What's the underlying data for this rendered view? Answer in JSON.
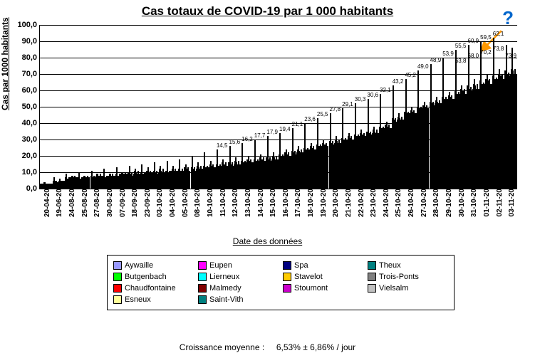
{
  "title": "Cas totaux de COVID-19 par 1 000 habitants",
  "qmark": "?",
  "ylabel": "Cas par 1000 habitants",
  "xlabel": "Date des données",
  "footer_label": "Croissance moyenne :",
  "footer_value": "6,53%  ± 6,86% / jour",
  "chart": {
    "ylim": [
      0,
      100
    ],
    "ytick_step": 10,
    "ytick_labels": [
      "0,0",
      "10,0",
      "20,0",
      "30,0",
      "40,0",
      "50,0",
      "60,0",
      "70,0",
      "80,0",
      "90,0",
      "100,0"
    ],
    "grid_color": "#000000",
    "bg": "#ffffff",
    "arrow_color": "#ff9900",
    "series": [
      {
        "name": "Aywaille",
        "color": "#9999ff"
      },
      {
        "name": "Butgenbach",
        "color": "#00ff00"
      },
      {
        "name": "Chaudfontaine",
        "color": "#ff0000"
      },
      {
        "name": "Esneux",
        "color": "#ffff99"
      },
      {
        "name": "Eupen",
        "color": "#ff00ff"
      },
      {
        "name": "Lierneux",
        "color": "#00ffff"
      },
      {
        "name": "Malmedy",
        "color": "#800000"
      },
      {
        "name": "Saint-Vith",
        "color": "#008080"
      },
      {
        "name": "Spa",
        "color": "#000080"
      },
      {
        "name": "Stavelot",
        "color": "#ffcc00"
      },
      {
        "name": "Stoumont",
        "color": "#cc00cc"
      },
      {
        "name": "Theux",
        "color": "#008080"
      },
      {
        "name": "Trois-Ponts",
        "color": "#808080"
      },
      {
        "name": "Vielsalm",
        "color": "#c0c0c0"
      }
    ],
    "legend_order": [
      0,
      4,
      8,
      11,
      1,
      5,
      9,
      12,
      2,
      6,
      10,
      13,
      3,
      7
    ],
    "dates": [
      "20-04-20",
      "19-06-20",
      "24-08-20",
      "25-08-20",
      "27-08-20",
      "30-08-20",
      "07-09-20",
      "18-09-20",
      "23-09-20",
      "03-10-20",
      "04-10-20",
      "05-10-20",
      "08-10-20",
      "10-10-20",
      "11-10-20",
      "12-10-20",
      "13-10-20",
      "14-10-20",
      "15-10-20",
      "16-10-20",
      "17-10-20",
      "18-10-20",
      "19-10-20",
      "20-10-20",
      "21-10-20",
      "22-10-20",
      "23-10-20",
      "24-10-20",
      "25-10-20",
      "26-10-20",
      "27-10-20",
      "28-10-20",
      "29-10-20",
      "30-10-20",
      "31-10-20",
      "01-11-20",
      "02-11-20",
      "03-11-20"
    ],
    "data_labels": {
      "14": "14,5",
      "15": "15,6",
      "16": "16,2",
      "17": "17,7",
      "18": "17,9",
      "19": "19,4",
      "20": "21,1",
      "21": "23,6",
      "22": "25,5",
      "23": "27,8",
      "24": "29,1",
      "25": "30,3",
      "26": "30,6",
      "27": "32,1",
      "28": "43,2",
      "29": "45,2",
      "30": "49,0",
      "31": "48,9",
      "32": "53,9",
      "33": "55,5",
      "34": "60,9",
      "35": "59,5",
      "36": "62,1",
      "37": null
    },
    "top_labels": {
      "33": "63,8",
      "34": "68,0",
      "35": "70,2",
      "36": "73,8",
      "37": "73,9"
    },
    "values": [
      [
        3,
        3,
        3,
        3,
        4,
        4,
        3,
        3,
        3,
        2,
        3,
        3,
        3,
        3
      ],
      [
        5,
        7,
        5,
        4,
        5,
        4,
        4,
        5,
        6,
        5,
        5,
        5,
        5,
        5
      ],
      [
        7,
        9,
        6,
        6,
        7,
        6,
        7,
        8,
        8,
        7,
        7,
        8,
        7,
        7
      ],
      [
        7,
        10,
        6,
        6,
        7,
        6,
        7,
        8,
        8,
        7,
        7,
        8,
        7,
        7
      ],
      [
        8,
        11,
        7,
        7,
        8,
        7,
        8,
        9,
        9,
        8,
        8,
        9,
        8,
        8
      ],
      [
        8,
        12,
        7,
        7,
        8,
        7,
        8,
        9,
        9,
        8,
        8,
        9,
        8,
        8
      ],
      [
        9,
        13,
        8,
        8,
        9,
        8,
        9,
        10,
        10,
        9,
        9,
        10,
        9,
        9
      ],
      [
        10,
        14,
        9,
        9,
        10,
        8,
        9,
        11,
        12,
        10,
        9,
        11,
        9,
        9
      ],
      [
        10,
        15,
        9,
        9,
        10,
        9,
        10,
        11,
        13,
        10,
        10,
        11,
        10,
        10
      ],
      [
        11,
        16,
        10,
        10,
        11,
        9,
        10,
        12,
        14,
        11,
        10,
        12,
        10,
        10
      ],
      [
        11,
        17,
        10,
        10,
        11,
        10,
        11,
        12,
        14,
        11,
        11,
        12,
        11,
        11
      ],
      [
        12,
        18,
        11,
        11,
        12,
        10,
        11,
        13,
        15,
        12,
        11,
        13,
        11,
        11
      ],
      [
        13,
        20,
        12,
        12,
        13,
        11,
        12,
        14,
        16,
        13,
        12,
        14,
        12,
        12
      ],
      [
        14,
        22,
        13,
        13,
        14,
        12,
        13,
        15,
        17,
        14,
        13,
        15,
        13,
        13
      ],
      [
        15,
        24,
        14,
        14,
        15,
        13,
        14,
        16,
        18,
        15,
        14,
        16,
        14,
        14
      ],
      [
        16,
        26,
        15,
        15,
        16,
        14,
        15,
        17,
        19,
        16,
        15,
        17,
        15,
        15
      ],
      [
        17,
        28,
        16,
        16,
        17,
        15,
        16,
        18,
        20,
        17,
        16,
        18,
        16,
        16
      ],
      [
        18,
        30,
        17,
        17,
        18,
        16,
        17,
        19,
        21,
        18,
        17,
        19,
        17,
        17
      ],
      [
        19,
        32,
        18,
        18,
        19,
        17,
        18,
        20,
        22,
        19,
        18,
        20,
        18,
        18
      ],
      [
        21,
        34,
        20,
        20,
        21,
        19,
        20,
        22,
        24,
        21,
        20,
        22,
        20,
        20
      ],
      [
        23,
        37,
        22,
        22,
        23,
        21,
        22,
        24,
        26,
        23,
        22,
        24,
        22,
        22
      ],
      [
        25,
        40,
        24,
        24,
        25,
        23,
        24,
        26,
        28,
        25,
        24,
        26,
        24,
        24
      ],
      [
        27,
        43,
        26,
        26,
        27,
        25,
        26,
        28,
        30,
        27,
        26,
        28,
        26,
        26
      ],
      [
        29,
        46,
        28,
        28,
        29,
        27,
        28,
        30,
        32,
        29,
        28,
        30,
        28,
        28
      ],
      [
        31,
        49,
        30,
        30,
        31,
        29,
        30,
        32,
        34,
        31,
        30,
        32,
        30,
        30
      ],
      [
        33,
        52,
        32,
        32,
        33,
        31,
        32,
        34,
        36,
        33,
        32,
        34,
        32,
        32
      ],
      [
        35,
        55,
        34,
        34,
        35,
        33,
        34,
        36,
        38,
        35,
        34,
        36,
        34,
        34
      ],
      [
        38,
        58,
        37,
        37,
        38,
        36,
        37,
        39,
        41,
        38,
        37,
        39,
        37,
        37
      ],
      [
        43,
        63,
        42,
        42,
        43,
        41,
        42,
        44,
        46,
        43,
        42,
        44,
        42,
        42
      ],
      [
        47,
        67,
        46,
        46,
        47,
        45,
        46,
        48,
        50,
        47,
        46,
        48,
        46,
        46
      ],
      [
        50,
        72,
        49,
        49,
        50,
        48,
        49,
        51,
        53,
        50,
        49,
        51,
        49,
        49
      ],
      [
        53,
        76,
        52,
        52,
        53,
        51,
        52,
        54,
        56,
        53,
        52,
        54,
        52,
        52
      ],
      [
        56,
        80,
        55,
        55,
        56,
        54,
        55,
        57,
        59,
        56,
        55,
        57,
        55,
        55
      ],
      [
        60,
        85,
        58,
        58,
        59,
        57,
        58,
        61,
        63,
        60,
        58,
        61,
        58,
        58
      ],
      [
        63,
        88,
        61,
        61,
        62,
        60,
        61,
        64,
        67,
        63,
        61,
        64,
        61,
        61
      ],
      [
        66,
        90,
        64,
        64,
        65,
        63,
        64,
        67,
        70,
        66,
        64,
        67,
        64,
        64
      ],
      [
        69,
        92,
        67,
        67,
        68,
        66,
        67,
        70,
        73,
        69,
        67,
        70,
        67,
        67
      ],
      [
        72,
        88,
        70,
        70,
        71,
        69,
        70,
        73,
        86,
        72,
        70,
        73,
        70,
        70
      ]
    ]
  }
}
